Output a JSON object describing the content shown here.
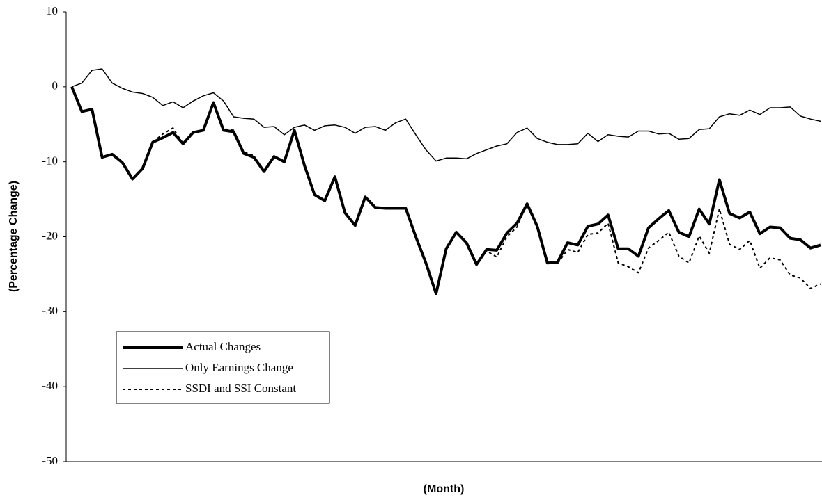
{
  "chart_data": {
    "type": "line",
    "xlabel": "(Month)",
    "ylabel": "(Percentage Change)",
    "categories": [
      null,
      null,
      null,
      null,
      null,
      null,
      null,
      null,
      null,
      null,
      null,
      null,
      null,
      null,
      null,
      null,
      null,
      null,
      null,
      null,
      null,
      null,
      null,
      null,
      null,
      null,
      null,
      null,
      null,
      null,
      null,
      null,
      null,
      null,
      null,
      null,
      null,
      null,
      null,
      null,
      null,
      null,
      null,
      null,
      null,
      null,
      null,
      null,
      null,
      null,
      null,
      null,
      null,
      null,
      null,
      null,
      null,
      null,
      null,
      null,
      null,
      null,
      null,
      null,
      null,
      null,
      null,
      null,
      null,
      null,
      null,
      null,
      null,
      null,
      null
    ],
    "series": [
      {
        "name": "Actual Changes",
        "color": "#000000",
        "line_style": "solid",
        "line_width": 4,
        "values": [
          0,
          -3.3,
          -3,
          -9.4,
          -9,
          -10.1,
          -12.3,
          -10.9,
          -7.4,
          -6.8,
          -6.1,
          -7.6,
          -6.1,
          -5.8,
          -2.1,
          -5.8,
          -6,
          -8.9,
          -9.4,
          -11.3,
          -9.3,
          -10,
          -5.8,
          -10.5,
          -14.4,
          -15.2,
          -12,
          -16.8,
          -18.5,
          -14.7,
          -16.1,
          -16.2,
          -16.2,
          -16.2,
          -20,
          -23.5,
          -27.6,
          -21.6,
          -19.4,
          -20.8,
          -23.7,
          -21.7,
          -21.8,
          -19.5,
          -18.2,
          -15.6,
          -18.6,
          -23.5,
          -23.4,
          -20.8,
          -21.1,
          -18.6,
          -18.3,
          -17.1,
          -21.6,
          -21.6,
          -22.6,
          -18.8,
          -17.6,
          -16.5,
          -19.4,
          -20,
          -16.3,
          -18.3,
          -12.4,
          -16.9,
          -17.5,
          -16.7,
          -19.6,
          -18.7,
          -18.8,
          -20.2,
          -20.4,
          -21.5,
          -21.1
        ]
      },
      {
        "name": "Only Earnings Change",
        "color": "#000000",
        "line_style": "solid",
        "line_width": 1.5,
        "values": [
          0,
          0.5,
          2.2,
          2.4,
          0.5,
          -0.2,
          -0.7,
          -0.9,
          -1.4,
          -2.5,
          -2,
          -2.8,
          -1.9,
          -1.2,
          -0.8,
          -1.9,
          -4,
          -4.2,
          -4.3,
          -5.4,
          -5.3,
          -6.4,
          -5.4,
          -5.1,
          -5.8,
          -5.2,
          -5.1,
          -5.4,
          -6.2,
          -5.4,
          -5.3,
          -5.8,
          -4.8,
          -4.3,
          -6.4,
          -8.4,
          -9.9,
          -9.5,
          -9.5,
          -9.6,
          -8.9,
          -8.4,
          -7.9,
          -7.6,
          -6.1,
          -5.5,
          -6.9,
          -7.4,
          -7.7,
          -7.7,
          -7.6,
          -6.2,
          -7.3,
          -6.4,
          -6.6,
          -6.7,
          -5.9,
          -5.9,
          -6.3,
          -6.2,
          -7,
          -6.9,
          -5.7,
          -5.6,
          -4,
          -3.6,
          -3.8,
          -3.1,
          -3.7,
          -2.8,
          -2.8,
          -2.7,
          -3.9,
          -4.3,
          -4.6
        ]
      },
      {
        "name": "SSDI and SSI Constant",
        "color": "#000000",
        "line_style": "dashed",
        "line_width": 2,
        "values": [
          0,
          -3.3,
          -3,
          -9.4,
          -9,
          -10.1,
          -12.3,
          -10.9,
          -7.4,
          -6.3,
          -5.5,
          -7.6,
          -6.1,
          -5.8,
          -2.1,
          -5.6,
          -5.8,
          -8.7,
          -9.2,
          -11.3,
          -9.3,
          -10,
          -5.8,
          -10.5,
          -14.4,
          -15.2,
          -12,
          -16.8,
          -18.5,
          -14.7,
          -16.1,
          -16.2,
          -16.2,
          -16.2,
          -20,
          -23.5,
          -27.6,
          -21.6,
          -19.4,
          -20.8,
          -23.7,
          -21.9,
          -22.7,
          -20,
          -18.7,
          -15.6,
          -18.6,
          -23.5,
          -23.6,
          -21.7,
          -22.1,
          -19.7,
          -19.5,
          -18.2,
          -23.5,
          -24,
          -24.8,
          -21.5,
          -20.5,
          -19.4,
          -22.6,
          -23.5,
          -19.9,
          -22.2,
          -16.3,
          -21,
          -21.7,
          -20.5,
          -24.2,
          -22.8,
          -23.1,
          -25.1,
          -25.5,
          -26.9,
          -26.3
        ]
      }
    ],
    "ylim": [
      -50,
      10
    ],
    "yticks": [
      -50,
      -40,
      -30,
      -20,
      -10,
      0,
      10
    ],
    "grid": false
  }
}
